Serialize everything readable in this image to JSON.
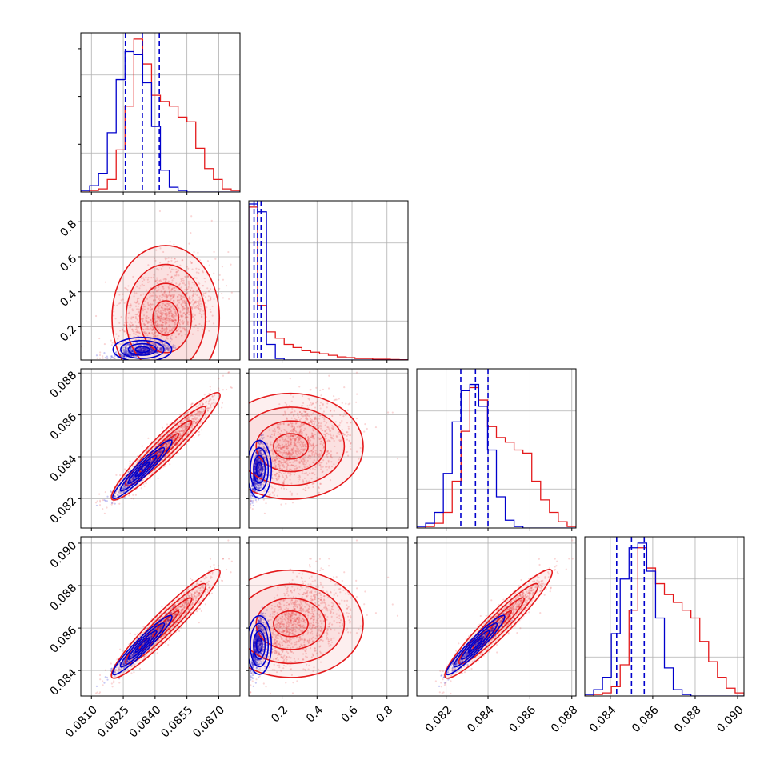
{
  "colors": {
    "posterior_a": "#e41a1c",
    "posterior_b": "#0000cc",
    "grid": "#b0b0b0",
    "axes": "#000000",
    "background": "#ffffff"
  },
  "chart_data": {
    "type": "corner",
    "grid": true,
    "series": [
      {
        "color": "#e41a1c"
      },
      {
        "color": "#0000cc"
      }
    ],
    "parameters": [
      {
        "ticks": [
          0.081,
          0.0825,
          0.084,
          0.0855,
          0.087
        ],
        "tick_labels": [
          "0.0810",
          "0.0825",
          "0.0840",
          "0.0855",
          "0.0870"
        ],
        "range": [
          0.0805,
          0.088
        ]
      },
      {
        "ticks": [
          0.2,
          0.4,
          0.6,
          0.8
        ],
        "tick_labels": [
          "0.2",
          "0.4",
          "0.6",
          "0.8"
        ],
        "range": [
          0.01,
          0.92
        ]
      },
      {
        "ticks": [
          0.082,
          0.084,
          0.086,
          0.088
        ],
        "tick_labels": [
          "0.082",
          "0.084",
          "0.086",
          "0.088"
        ],
        "range": [
          0.0806,
          0.0882
        ]
      },
      {
        "ticks": [
          0.084,
          0.086,
          0.088,
          0.09
        ],
        "tick_labels": [
          "0.084",
          "0.086",
          "0.088",
          "0.090"
        ],
        "range": [
          0.0828,
          0.0903
        ]
      }
    ],
    "histograms": [
      {
        "param": 0,
        "red": [
          0.0,
          0.01,
          0.02,
          0.08,
          0.27,
          0.55,
          0.98,
          0.82,
          0.62,
          0.58,
          0.55,
          0.48,
          0.45,
          0.28,
          0.15,
          0.08,
          0.02,
          0.01
        ],
        "blue": [
          0.01,
          0.04,
          0.12,
          0.38,
          0.72,
          0.9,
          0.88,
          0.7,
          0.42,
          0.14,
          0.03,
          0.01,
          0.0,
          0.0,
          0.0,
          0.0,
          0.0,
          0.0
        ],
        "quantiles_blue": [
          0.0826,
          0.0834,
          0.0842
        ]
      },
      {
        "param": 1,
        "red": [
          0.98,
          0.35,
          0.18,
          0.14,
          0.1,
          0.08,
          0.06,
          0.05,
          0.04,
          0.03,
          0.02,
          0.015,
          0.01,
          0.01,
          0.005,
          0.005,
          0.003,
          0.002
        ],
        "blue": [
          1.0,
          0.95,
          0.1,
          0.01,
          0.0,
          0.0,
          0.0,
          0.0,
          0.0,
          0.0,
          0.0,
          0.0,
          0.0,
          0.0,
          0.0,
          0.0,
          0.0,
          0.0
        ],
        "quantiles_blue": [
          0.04,
          0.06,
          0.08
        ]
      },
      {
        "param": 2,
        "red": [
          0.0,
          0.01,
          0.03,
          0.1,
          0.3,
          0.62,
          0.9,
          0.82,
          0.65,
          0.58,
          0.55,
          0.5,
          0.48,
          0.3,
          0.18,
          0.1,
          0.04,
          0.01
        ],
        "blue": [
          0.01,
          0.03,
          0.1,
          0.35,
          0.68,
          0.88,
          0.92,
          0.78,
          0.5,
          0.2,
          0.05,
          0.01,
          0.0,
          0.0,
          0.0,
          0.0,
          0.0,
          0.0
        ],
        "quantiles_blue": [
          0.0827,
          0.0834,
          0.084
        ]
      },
      {
        "param": 3,
        "red": [
          0.0,
          0.01,
          0.02,
          0.06,
          0.2,
          0.55,
          0.95,
          0.82,
          0.72,
          0.65,
          0.6,
          0.55,
          0.5,
          0.35,
          0.22,
          0.12,
          0.05,
          0.02
        ],
        "blue": [
          0.01,
          0.04,
          0.12,
          0.4,
          0.75,
          0.95,
          0.98,
          0.8,
          0.5,
          0.18,
          0.04,
          0.01,
          0.0,
          0.0,
          0.0,
          0.0,
          0.0,
          0.0
        ],
        "quantiles_blue": [
          0.0843,
          0.085,
          0.0856
        ]
      }
    ],
    "posteriors": {
      "blue": {
        "mean": [
          0.0834,
          0.07,
          0.0834,
          0.0852
        ],
        "sd": [
          0.0006,
          0.03,
          0.0006,
          0.0006
        ]
      },
      "red": {
        "mean": [
          0.0845,
          0.25,
          0.0845,
          0.0862
        ],
        "sd": [
          0.0011,
          0.18,
          0.0011,
          0.0011
        ]
      }
    }
  }
}
